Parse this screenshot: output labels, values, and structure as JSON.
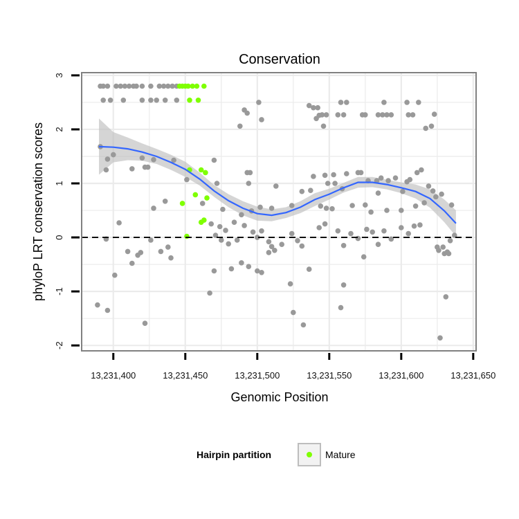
{
  "chart_data": {
    "type": "scatter",
    "title": "Conservation",
    "xlabel": "Genomic Position",
    "ylabel": "phyloP LRT conservation scores",
    "xlim": [
      13231378,
      13231652
    ],
    "ylim": [
      -2.1,
      3.05
    ],
    "x_ticks": [
      13231400,
      13231450,
      13231500,
      13231550,
      13231600,
      13231650
    ],
    "x_tick_labels": [
      "13,231,400",
      "13,231,450",
      "13,231,500",
      "13,231,550",
      "13,231,600",
      "13,231,650"
    ],
    "y_ticks": [
      -2,
      -1,
      0,
      1,
      2,
      3
    ],
    "y_tick_labels": [
      "-2",
      "-1",
      "0",
      "1",
      "2",
      "3"
    ],
    "grid": true,
    "reference_line": {
      "y": 0,
      "style": "dashed"
    },
    "legend": {
      "title": "Hairpin partition",
      "position": "bottom",
      "entries": [
        {
          "label": "Mature",
          "color": "#7fff00"
        }
      ]
    },
    "colors": {
      "points": "#999999",
      "mature": "#7fff00",
      "smooth": "#3366ff",
      "band": "#bfbfbf",
      "panel_border": "#808080",
      "grid": "#ebebeb"
    },
    "series": [
      {
        "name": "other",
        "color": "#999999",
        "points": [
          [
            13231391,
            2.8
          ],
          [
            13231393,
            2.8
          ],
          [
            13231396,
            2.8
          ],
          [
            13231402,
            2.8
          ],
          [
            13231405,
            2.8
          ],
          [
            13231408,
            2.8
          ],
          [
            13231411,
            2.8
          ],
          [
            13231414,
            2.8
          ],
          [
            13231416,
            2.8
          ],
          [
            13231420,
            2.8
          ],
          [
            13231426,
            2.8
          ],
          [
            13231432,
            2.8
          ],
          [
            13231435,
            2.8
          ],
          [
            13231438,
            2.8
          ],
          [
            13231441,
            2.8
          ],
          [
            13231444,
            2.8
          ],
          [
            13231393,
            2.54
          ],
          [
            13231398,
            2.54
          ],
          [
            13231407,
            2.54
          ],
          [
            13231420,
            2.54
          ],
          [
            13231426,
            2.54
          ],
          [
            13231430,
            2.54
          ],
          [
            13231436,
            2.54
          ],
          [
            13231444,
            2.54
          ],
          [
            13231545,
            2.27
          ],
          [
            13231548,
            2.27
          ],
          [
            13231556,
            2.27
          ],
          [
            13231560,
            2.27
          ],
          [
            13231573,
            2.27
          ],
          [
            13231575,
            2.27
          ],
          [
            13231584,
            2.27
          ],
          [
            13231587,
            2.27
          ],
          [
            13231590,
            2.27
          ],
          [
            13231593,
            2.27
          ],
          [
            13231605,
            2.27
          ],
          [
            13231608,
            2.27
          ],
          [
            13231501,
            2.5
          ],
          [
            13231536,
            2.44
          ],
          [
            13231539,
            2.4
          ],
          [
            13231542,
            2.4
          ],
          [
            13231558,
            2.5
          ],
          [
            13231562,
            2.5
          ],
          [
            13231588,
            2.5
          ],
          [
            13231604,
            2.5
          ],
          [
            13231612,
            2.5
          ],
          [
            13231491,
            2.36
          ],
          [
            13231493,
            2.3
          ],
          [
            13231543,
            2.26
          ],
          [
            13231541,
            2.2
          ],
          [
            13231503,
            2.18
          ],
          [
            13231488,
            2.06
          ],
          [
            13231546,
            2.06
          ],
          [
            13231617,
            2.02
          ],
          [
            13231621,
            2.06
          ],
          [
            13231623,
            2.28
          ],
          [
            13231391,
            1.68
          ],
          [
            13231396,
            1.45
          ],
          [
            13231395,
            1.25
          ],
          [
            13231400,
            1.53
          ],
          [
            13231413,
            1.27
          ],
          [
            13231420,
            1.47
          ],
          [
            13231422,
            1.3
          ],
          [
            13231424,
            1.3
          ],
          [
            13231428,
            1.44
          ],
          [
            13231442,
            1.43
          ],
          [
            13231470,
            1.43
          ],
          [
            13231493,
            1.2
          ],
          [
            13231495,
            1.2
          ],
          [
            13231539,
            1.13
          ],
          [
            13231547,
            1.15
          ],
          [
            13231553,
            1.16
          ],
          [
            13231562,
            1.18
          ],
          [
            13231570,
            1.2
          ],
          [
            13231572,
            1.2
          ],
          [
            13231586,
            1.1
          ],
          [
            13231596,
            1.1
          ],
          [
            13231611,
            1.2
          ],
          [
            13231614,
            1.25
          ],
          [
            13231577,
            1.05
          ],
          [
            13231583,
            1.05
          ],
          [
            13231591,
            1.05
          ],
          [
            13231604,
            1.03
          ],
          [
            13231606,
            1.07
          ],
          [
            13231451,
            1.07
          ],
          [
            13231472,
            1.0
          ],
          [
            13231494,
            1.0
          ],
          [
            13231513,
            0.95
          ],
          [
            13231531,
            0.85
          ],
          [
            13231537,
            0.87
          ],
          [
            13231549,
            1.0
          ],
          [
            13231554,
            1.0
          ],
          [
            13231559,
            0.9
          ],
          [
            13231584,
            0.82
          ],
          [
            13231601,
            0.85
          ],
          [
            13231619,
            0.95
          ],
          [
            13231622,
            0.86
          ],
          [
            13231624,
            0.75
          ],
          [
            13231628,
            0.8
          ],
          [
            13231436,
            0.67
          ],
          [
            13231428,
            0.54
          ],
          [
            13231462,
            0.63
          ],
          [
            13231476,
            0.52
          ],
          [
            13231489,
            0.42
          ],
          [
            13231496,
            0.49
          ],
          [
            13231502,
            0.56
          ],
          [
            13231510,
            0.54
          ],
          [
            13231524,
            0.59
          ],
          [
            13231544,
            0.58
          ],
          [
            13231548,
            0.54
          ],
          [
            13231552,
            0.53
          ],
          [
            13231566,
            0.59
          ],
          [
            13231575,
            0.6
          ],
          [
            13231579,
            0.47
          ],
          [
            13231590,
            0.5
          ],
          [
            13231600,
            0.5
          ],
          [
            13231610,
            0.58
          ],
          [
            13231616,
            0.64
          ],
          [
            13231635,
            0.6
          ],
          [
            13231404,
            0.27
          ],
          [
            13231426,
            -0.05
          ],
          [
            13231395,
            -0.03
          ],
          [
            13231410,
            -0.26
          ],
          [
            13231413,
            -0.48
          ],
          [
            13231417,
            -0.33
          ],
          [
            13231419,
            -0.28
          ],
          [
            13231433,
            -0.26
          ],
          [
            13231438,
            -0.18
          ],
          [
            13231440,
            -0.38
          ],
          [
            13231468,
            0.25
          ],
          [
            13231474,
            0.2
          ],
          [
            13231478,
            0.13
          ],
          [
            13231484,
            0.28
          ],
          [
            13231471,
            0.04
          ],
          [
            13231475,
            -0.05
          ],
          [
            13231480,
            -0.12
          ],
          [
            13231486,
            -0.05
          ],
          [
            13231491,
            0.22
          ],
          [
            13231497,
            0.1
          ],
          [
            13231500,
            0.0
          ],
          [
            13231503,
            0.12
          ],
          [
            13231508,
            -0.08
          ],
          [
            13231510,
            -0.17
          ],
          [
            13231512,
            -0.24
          ],
          [
            13231517,
            -0.13
          ],
          [
            13231524,
            0.07
          ],
          [
            13231528,
            -0.06
          ],
          [
            13231531,
            -0.16
          ],
          [
            13231543,
            0.18
          ],
          [
            13231547,
            0.25
          ],
          [
            13231556,
            0.12
          ],
          [
            13231560,
            -0.15
          ],
          [
            13231565,
            0.07
          ],
          [
            13231570,
            -0.02
          ],
          [
            13231576,
            0.15
          ],
          [
            13231580,
            0.1
          ],
          [
            13231584,
            -0.13
          ],
          [
            13231588,
            0.12
          ],
          [
            13231593,
            -0.03
          ],
          [
            13231600,
            0.18
          ],
          [
            13231605,
            0.07
          ],
          [
            13231609,
            0.21
          ],
          [
            13231613,
            0.23
          ],
          [
            13231625,
            -0.18
          ],
          [
            13231630,
            -0.3
          ],
          [
            13231634,
            -0.06
          ],
          [
            13231637,
            0.04
          ],
          [
            13231401,
            -0.7
          ],
          [
            13231389,
            -1.25
          ],
          [
            13231396,
            -1.35
          ],
          [
            13231422,
            -1.59
          ],
          [
            13231470,
            -0.62
          ],
          [
            13231482,
            -0.58
          ],
          [
            13231489,
            -0.47
          ],
          [
            13231494,
            -0.54
          ],
          [
            13231500,
            -0.62
          ],
          [
            13231503,
            -0.65
          ],
          [
            13231508,
            -0.28
          ],
          [
            13231523,
            -0.86
          ],
          [
            13231525,
            -1.39
          ],
          [
            13231532,
            -1.62
          ],
          [
            13231536,
            -0.59
          ],
          [
            13231558,
            -1.3
          ],
          [
            13231560,
            -0.88
          ],
          [
            13231574,
            -0.36
          ],
          [
            13231626,
            -0.24
          ],
          [
            13231629,
            -0.18
          ],
          [
            13231631,
            -1.1
          ],
          [
            13231633,
            -0.3
          ],
          [
            13231632,
            -0.27
          ],
          [
            13231627,
            -1.86
          ],
          [
            13231467,
            -1.03
          ]
        ]
      },
      {
        "name": "Mature",
        "color": "#7fff00",
        "points": [
          [
            13231446,
            2.8
          ],
          [
            13231448,
            2.8
          ],
          [
            13231450,
            2.8
          ],
          [
            13231452,
            2.8
          ],
          [
            13231455,
            2.8
          ],
          [
            13231458,
            2.8
          ],
          [
            13231463,
            2.8
          ],
          [
            13231453,
            2.54
          ],
          [
            13231459,
            2.54
          ],
          [
            13231453,
            1.25
          ],
          [
            13231461,
            1.25
          ],
          [
            13231464,
            1.2
          ],
          [
            13231457,
            0.79
          ],
          [
            13231465,
            0.73
          ],
          [
            13231448,
            0.63
          ],
          [
            13231461,
            0.28
          ],
          [
            13231463,
            0.32
          ],
          [
            13231451,
            0.02
          ]
        ]
      }
    ],
    "smooth_fit": {
      "color": "#3366ff",
      "x": [
        13231390,
        13231400,
        13231410,
        13231420,
        13231430,
        13231440,
        13231450,
        13231460,
        13231470,
        13231480,
        13231490,
        13231500,
        13231510,
        13231520,
        13231530,
        13231540,
        13231550,
        13231560,
        13231570,
        13231580,
        13231590,
        13231600,
        13231610,
        13231620,
        13231630,
        13231638
      ],
      "y": [
        1.68,
        1.67,
        1.64,
        1.58,
        1.5,
        1.39,
        1.26,
        1.08,
        0.86,
        0.68,
        0.54,
        0.44,
        0.41,
        0.46,
        0.56,
        0.7,
        0.8,
        0.92,
        1.02,
        1.02,
        0.98,
        0.92,
        0.85,
        0.72,
        0.49,
        0.26
      ],
      "lower": [
        1.16,
        1.39,
        1.43,
        1.42,
        1.36,
        1.25,
        1.12,
        0.96,
        0.75,
        0.56,
        0.41,
        0.31,
        0.3,
        0.36,
        0.45,
        0.58,
        0.7,
        0.83,
        0.92,
        0.93,
        0.89,
        0.82,
        0.72,
        0.55,
        0.28,
        0.02
      ],
      "upper": [
        2.2,
        1.95,
        1.85,
        1.74,
        1.64,
        1.53,
        1.4,
        1.2,
        0.97,
        0.8,
        0.67,
        0.57,
        0.52,
        0.56,
        0.67,
        0.82,
        0.9,
        1.01,
        1.12,
        1.12,
        1.07,
        1.02,
        0.98,
        0.89,
        0.7,
        0.5
      ]
    }
  }
}
